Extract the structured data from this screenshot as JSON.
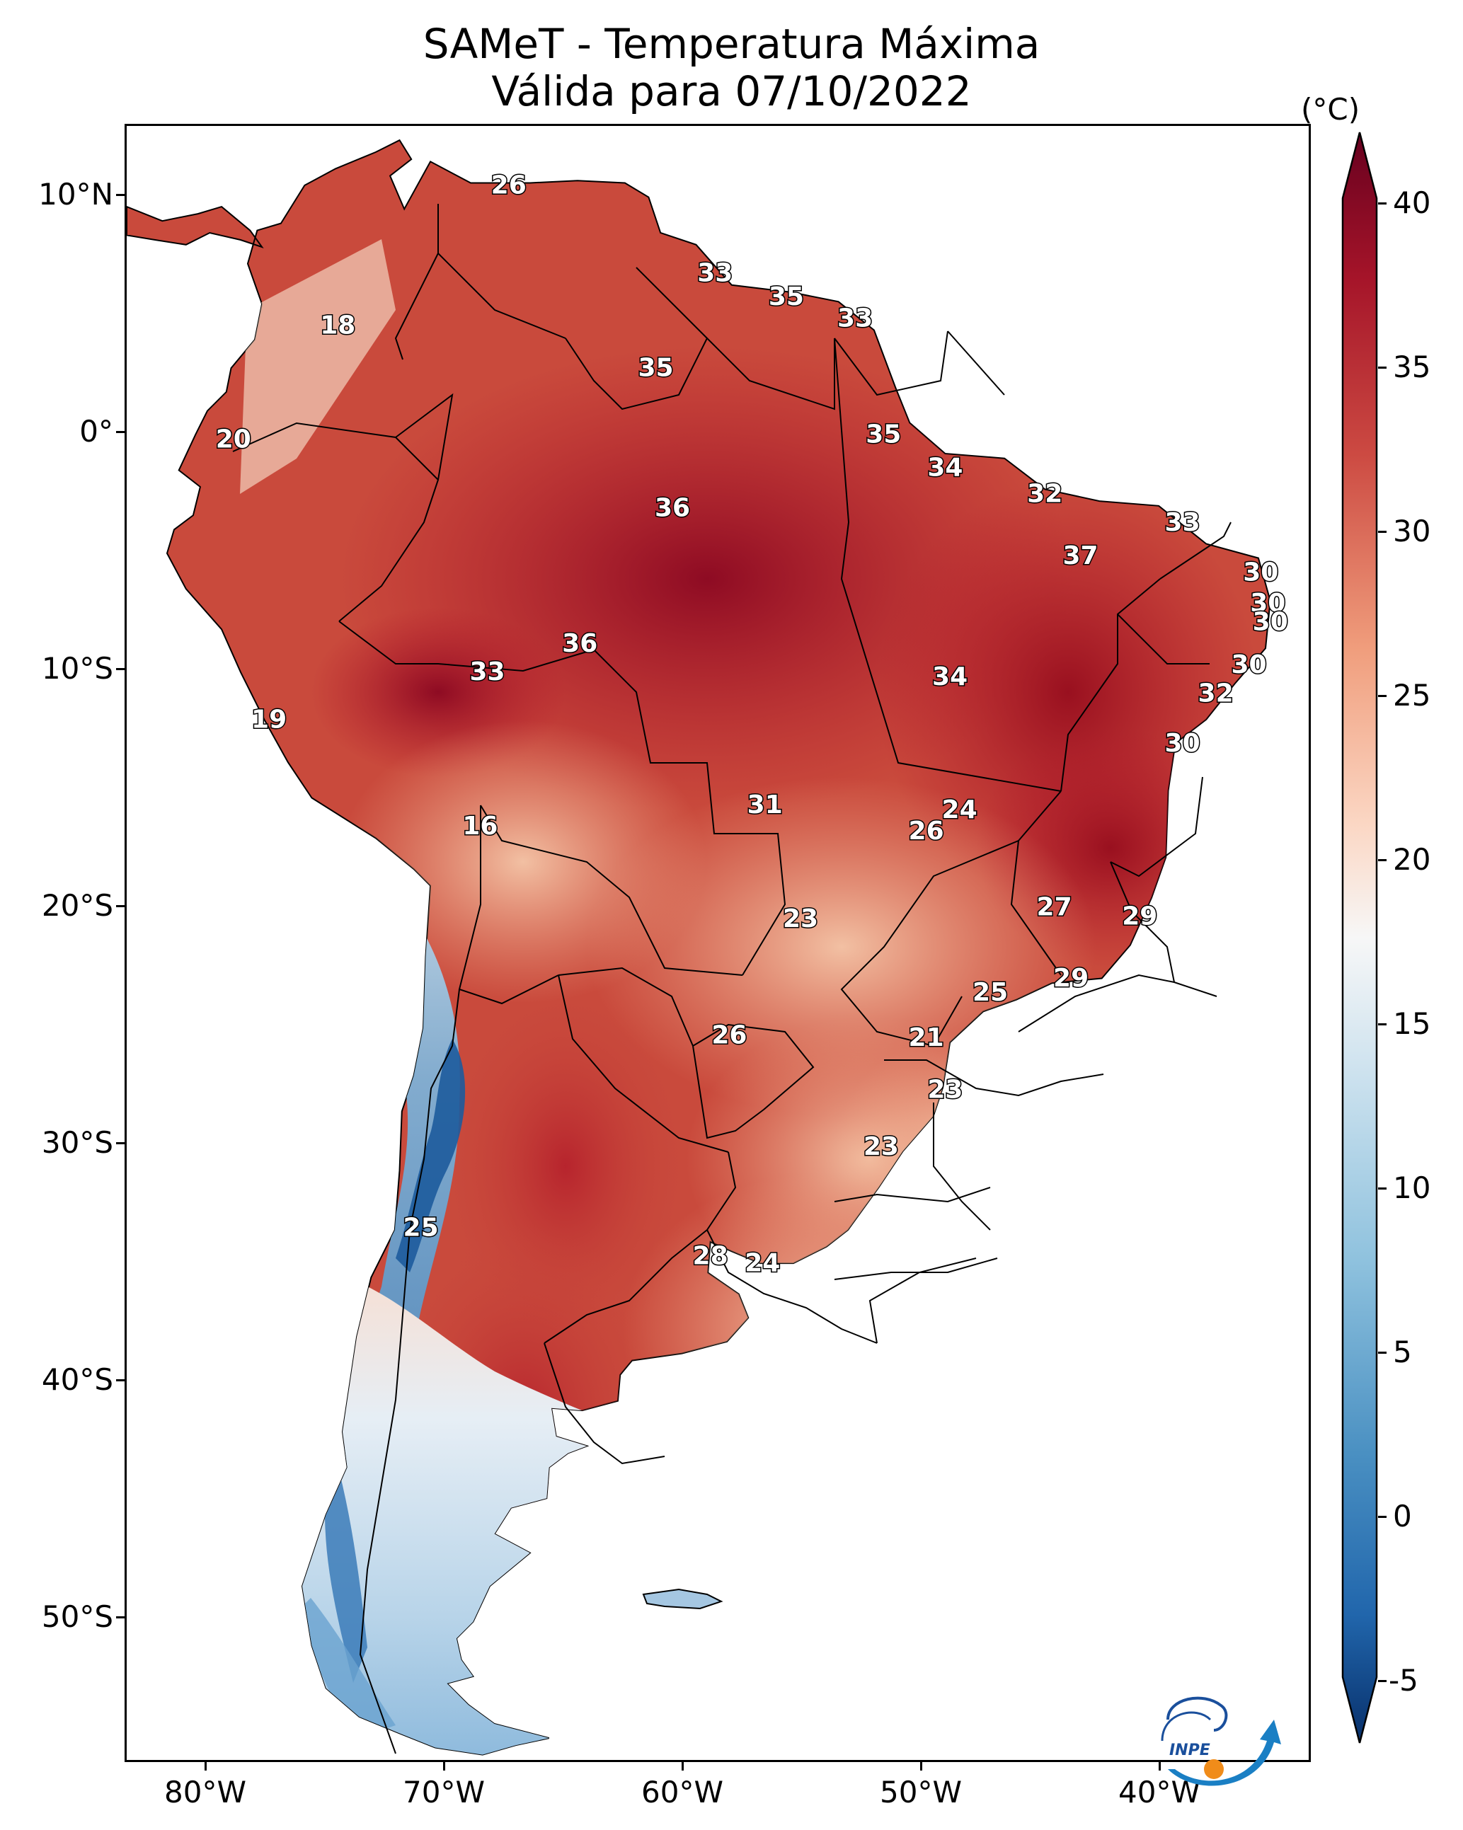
{
  "title": {
    "line1": "SAMeT - Temperatura Máxima",
    "line2": "Válida para 07/10/2022"
  },
  "axes": {
    "lat_labels": [
      "10°N",
      "0°",
      "10°S",
      "20°S",
      "30°S",
      "40°S",
      "50°S"
    ],
    "lon_labels": [
      "80°W",
      "70°W",
      "60°W",
      "50°W",
      "40°W"
    ]
  },
  "colorbar": {
    "unit": "(°C)",
    "ticks": [
      "40",
      "35",
      "30",
      "25",
      "20",
      "15",
      "10",
      "5",
      "0",
      "-5"
    ],
    "range": [
      -7,
      41
    ],
    "colors": {
      "cold_extreme": "#08306b",
      "cold": "#2166ac",
      "cool": "#92c5de",
      "neutral": "#f7f7f7",
      "warm": "#f4a582",
      "hot": "#d6604d",
      "very_hot": "#b2182b",
      "hot_extreme": "#67001f"
    }
  },
  "map": {
    "land_color": "#c94a3c",
    "extent": {
      "lon": [
        -83,
        -33
      ],
      "lat": [
        -56,
        13
      ]
    },
    "point_values": [
      {
        "text": "26",
        "lon": -66.9,
        "lat": 10.5
      },
      {
        "text": "18",
        "lon": -74.1,
        "lat": 4.6
      },
      {
        "text": "33",
        "lon": -58.2,
        "lat": 6.8
      },
      {
        "text": "35",
        "lon": -55.2,
        "lat": 5.8
      },
      {
        "text": "33",
        "lon": -52.3,
        "lat": 4.9
      },
      {
        "text": "35",
        "lon": -60.7,
        "lat": 2.8
      },
      {
        "text": "20",
        "lon": -78.5,
        "lat": -0.2
      },
      {
        "text": "35",
        "lon": -51.1,
        "lat": 0.0
      },
      {
        "text": "34",
        "lon": -48.5,
        "lat": -1.4
      },
      {
        "text": "32",
        "lon": -44.3,
        "lat": -2.5
      },
      {
        "text": "33",
        "lon": -38.5,
        "lat": -3.7
      },
      {
        "text": "36",
        "lon": -60.0,
        "lat": -3.1
      },
      {
        "text": "37",
        "lon": -42.8,
        "lat": -5.1
      },
      {
        "text": "30",
        "lon": -35.2,
        "lat": -5.8
      },
      {
        "text": "30",
        "lon": -34.9,
        "lat": -7.1
      },
      {
        "text": "30",
        "lon": -34.8,
        "lat": -7.9
      },
      {
        "text": "36",
        "lon": -63.9,
        "lat": -8.8
      },
      {
        "text": "33",
        "lon": -67.8,
        "lat": -10.0
      },
      {
        "text": "30",
        "lon": -35.7,
        "lat": -9.7
      },
      {
        "text": "34",
        "lon": -48.3,
        "lat": -10.2
      },
      {
        "text": "32",
        "lon": -37.1,
        "lat": -10.9
      },
      {
        "text": "19",
        "lon": -77.0,
        "lat": -12.0
      },
      {
        "text": "30",
        "lon": -38.5,
        "lat": -13.0
      },
      {
        "text": "31",
        "lon": -56.1,
        "lat": -15.6
      },
      {
        "text": "24",
        "lon": -47.9,
        "lat": -15.8
      },
      {
        "text": "16",
        "lon": -68.1,
        "lat": -16.5
      },
      {
        "text": "26",
        "lon": -49.3,
        "lat": -16.7
      },
      {
        "text": "27",
        "lon": -43.9,
        "lat": -19.9
      },
      {
        "text": "23",
        "lon": -54.6,
        "lat": -20.4
      },
      {
        "text": "29",
        "lon": -40.3,
        "lat": -20.3
      },
      {
        "text": "29",
        "lon": -43.2,
        "lat": -22.9
      },
      {
        "text": "25",
        "lon": -46.6,
        "lat": -23.5
      },
      {
        "text": "26",
        "lon": -57.6,
        "lat": -25.3
      },
      {
        "text": "21",
        "lon": -49.3,
        "lat": -25.4
      },
      {
        "text": "23",
        "lon": -48.5,
        "lat": -27.6
      },
      {
        "text": "23",
        "lon": -51.2,
        "lat": -30.0
      },
      {
        "text": "25",
        "lon": -70.6,
        "lat": -33.4
      },
      {
        "text": "28",
        "lon": -58.4,
        "lat": -34.6
      },
      {
        "text": "24",
        "lon": -56.2,
        "lat": -34.9
      }
    ]
  },
  "logo": {
    "text": "INPE"
  }
}
